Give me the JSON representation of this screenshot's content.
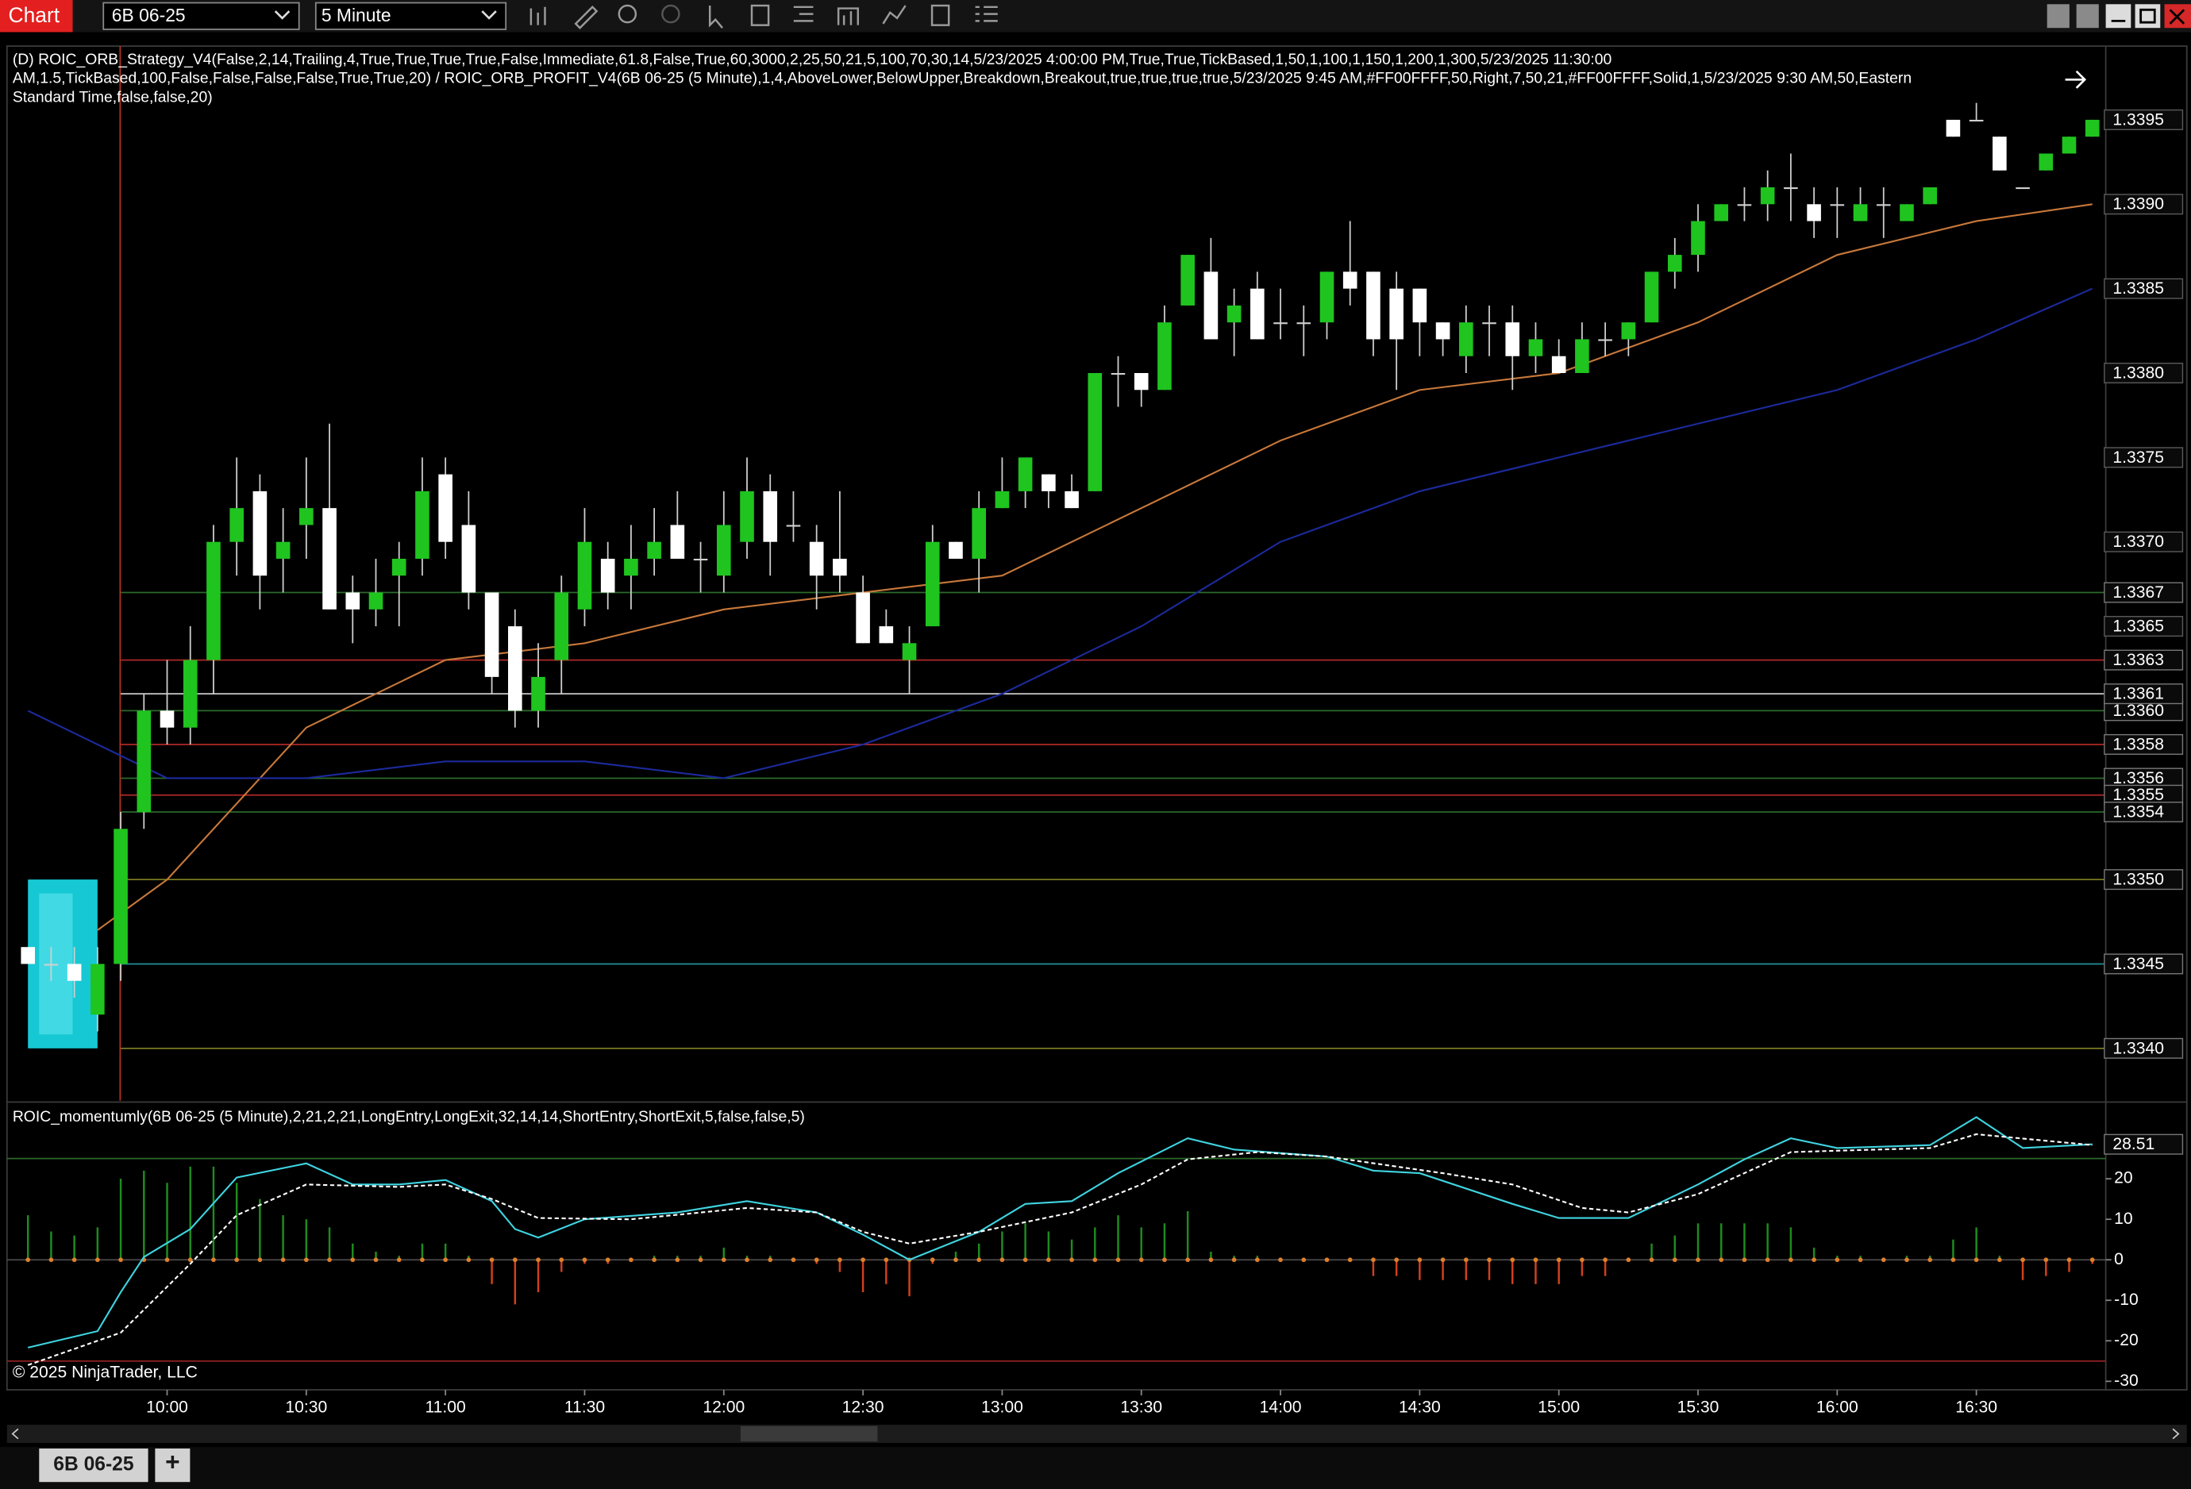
{
  "toolbar": {
    "tab": "Chart",
    "instrument": "6B 06-25",
    "interval": "5 Minute"
  },
  "chart_data": [
    {
      "type": "candlestick",
      "legend_lines": [
        "(D) ROIC_ORB_Strategy_V4(False,2,14,Trailing,4,True,True,True,True,False,Immediate,61.8,False,True,60,3000,2,25,50,21,5,100,70,30,14,5/23/2025 4:00:00 PM,True,True,TickBased,1,50,1,100,1,150,1,200,1,300,5/23/2025 11:30:00",
        "AM,1.5,TickBased,100,False,False,False,False,True,True,20) / ROIC_ORB_PROFIT_V4(6B 06-25 (5 Minute),1,4,AboveLower,BelowUpper,Breakdown,Breakout,true,true,true,true,5/23/2025 9:45 AM,#FF00FFFF,50,Right,7,50,21,#FF00FFFF,Solid,1,5/23/2025 9:30 AM,50,Eastern",
        "Standard Time,false,false,20)"
      ],
      "categories": [
        null,
        null,
        null,
        null,
        null,
        null,
        "10:00",
        null,
        null,
        null,
        null,
        null,
        "10:30",
        null,
        null,
        null,
        null,
        null,
        "11:00",
        null,
        null,
        null,
        null,
        null,
        "11:30",
        null,
        null,
        null,
        null,
        null,
        "12:00",
        null,
        null,
        null,
        null,
        null,
        "12:30",
        null,
        null,
        null,
        null,
        null,
        "13:00",
        null,
        null,
        null,
        null,
        null,
        "13:30",
        null,
        null,
        null,
        null,
        null,
        "14:00",
        null,
        null,
        null,
        null,
        null,
        "14:30",
        null,
        null,
        null,
        null,
        null,
        "15:00",
        null,
        null,
        null,
        null,
        null,
        "15:30",
        null,
        null,
        null,
        null,
        null,
        "16:00",
        null,
        null,
        null,
        null,
        null,
        "16:30",
        null,
        null,
        null,
        null,
        null
      ],
      "open": [
        1.3346,
        1.3345,
        1.3345,
        1.3342,
        1.3345,
        1.3354,
        1.336,
        1.3359,
        1.3363,
        1.337,
        1.3373,
        1.3369,
        1.3371,
        1.3372,
        1.3367,
        1.3366,
        1.3368,
        1.3369,
        1.3374,
        1.3371,
        1.3367,
        1.3365,
        1.336,
        1.3363,
        1.3366,
        1.3369,
        1.3368,
        1.3369,
        1.3371,
        1.3369,
        1.3368,
        1.337,
        1.3373,
        1.3371,
        1.337,
        1.3369,
        1.3367,
        1.3365,
        1.3363,
        1.3365,
        1.337,
        1.3369,
        1.3372,
        1.3373,
        1.3374,
        1.3373,
        1.3373,
        1.338,
        1.338,
        1.3379,
        1.3384,
        1.3386,
        1.3383,
        1.3385,
        1.3383,
        1.3383,
        1.3383,
        1.3386,
        1.3386,
        1.3385,
        1.3385,
        1.3383,
        1.3381,
        1.3383,
        1.3383,
        1.3381,
        1.3381,
        1.338,
        1.3382,
        1.3382,
        1.3383,
        1.3386,
        1.3387,
        1.3389,
        1.339,
        1.339,
        1.3391,
        1.339,
        1.339,
        1.3389,
        1.339,
        1.3389,
        1.339,
        1.3395,
        1.3395,
        1.3394,
        1.3391,
        1.3392,
        1.3393,
        1.3394
      ],
      "high": [
        1.3346,
        1.3346,
        1.3346,
        1.3346,
        1.3354,
        1.3361,
        1.3363,
        1.3365,
        1.3371,
        1.3375,
        1.3374,
        1.3372,
        1.3375,
        1.3377,
        1.3368,
        1.3369,
        1.337,
        1.3375,
        1.3375,
        1.3373,
        1.3367,
        1.3366,
        1.3364,
        1.3368,
        1.3372,
        1.337,
        1.3371,
        1.3372,
        1.3373,
        1.337,
        1.3373,
        1.3375,
        1.3374,
        1.3373,
        1.3371,
        1.3373,
        1.3368,
        1.3366,
        1.3365,
        1.3371,
        1.337,
        1.3373,
        1.3375,
        1.3375,
        1.3374,
        1.3374,
        1.338,
        1.3381,
        1.338,
        1.3384,
        1.3387,
        1.3388,
        1.3385,
        1.3386,
        1.3385,
        1.3384,
        1.3386,
        1.3389,
        1.3386,
        1.3386,
        1.3385,
        1.3383,
        1.3384,
        1.3384,
        1.3384,
        1.3383,
        1.3382,
        1.3383,
        1.3383,
        1.3383,
        1.3386,
        1.3388,
        1.339,
        1.339,
        1.3391,
        1.3392,
        1.3393,
        1.3391,
        1.3391,
        1.3391,
        1.3391,
        1.339,
        1.3391,
        1.3395,
        1.3396,
        1.3394,
        1.3391,
        1.3393,
        1.3394,
        1.3395
      ],
      "low": [
        1.3345,
        1.3344,
        1.3343,
        1.3341,
        1.3344,
        1.3353,
        1.3358,
        1.3358,
        1.3361,
        1.3368,
        1.3366,
        1.3367,
        1.3369,
        1.3366,
        1.3364,
        1.3365,
        1.3365,
        1.3368,
        1.3369,
        1.3366,
        1.3361,
        1.3359,
        1.3359,
        1.3361,
        1.3365,
        1.3366,
        1.3366,
        1.3368,
        1.3369,
        1.3367,
        1.3367,
        1.3369,
        1.3368,
        1.337,
        1.3366,
        1.3367,
        1.3364,
        1.3364,
        1.3361,
        1.3365,
        1.3369,
        1.3367,
        1.3372,
        1.3372,
        1.3372,
        1.3372,
        1.3373,
        1.3378,
        1.3378,
        1.3379,
        1.3384,
        1.3382,
        1.3381,
        1.3382,
        1.3382,
        1.3381,
        1.3382,
        1.3384,
        1.3381,
        1.3379,
        1.3381,
        1.3381,
        1.338,
        1.3381,
        1.3379,
        1.338,
        1.338,
        1.338,
        1.3381,
        1.3381,
        1.3383,
        1.3385,
        1.3386,
        1.3389,
        1.3389,
        1.3389,
        1.3389,
        1.3388,
        1.3388,
        1.3389,
        1.3388,
        1.3389,
        1.339,
        1.3394,
        1.3395,
        1.3392,
        1.3391,
        1.3392,
        1.3393,
        1.3394
      ],
      "close": [
        1.3345,
        1.3345,
        1.3344,
        1.3345,
        1.3353,
        1.336,
        1.3359,
        1.3363,
        1.337,
        1.3372,
        1.3368,
        1.337,
        1.3372,
        1.3366,
        1.3366,
        1.3367,
        1.3369,
        1.3373,
        1.337,
        1.3367,
        1.3362,
        1.336,
        1.3362,
        1.3367,
        1.337,
        1.3367,
        1.3369,
        1.337,
        1.3369,
        1.3369,
        1.3371,
        1.3373,
        1.337,
        1.3371,
        1.3368,
        1.3368,
        1.3364,
        1.3364,
        1.3364,
        1.337,
        1.3369,
        1.3372,
        1.3373,
        1.3375,
        1.3373,
        1.3372,
        1.338,
        1.338,
        1.3379,
        1.3383,
        1.3387,
        1.3382,
        1.3384,
        1.3382,
        1.3383,
        1.3383,
        1.3386,
        1.3385,
        1.3382,
        1.3382,
        1.3383,
        1.3382,
        1.3383,
        1.3383,
        1.3381,
        1.3382,
        1.338,
        1.3382,
        1.3382,
        1.3383,
        1.3386,
        1.3387,
        1.3389,
        1.339,
        1.339,
        1.3391,
        1.3391,
        1.3389,
        1.339,
        1.339,
        1.339,
        1.339,
        1.3391,
        1.3394,
        1.3395,
        1.3392,
        1.3391,
        1.3393,
        1.3394,
        1.3395
      ],
      "up_color": "#1fc41f",
      "down_color": "#ffffff",
      "doji_color": "#d0d0d0",
      "ylim": [
        1.33369,
        1.33992
      ],
      "yticks": [
        1.3365,
        {
          "value": 1.337,
          "label": "1.3370"
        },
        1.3375,
        {
          "value": 1.338,
          "label": "1.3380"
        },
        1.3385,
        {
          "value": 1.339,
          "label": "1.3390"
        },
        1.3395
      ],
      "levels": [
        {
          "value": 1.3367,
          "color": "#2c6a2c"
        },
        {
          "value": 1.3363,
          "color": "#b02828"
        },
        {
          "value": 1.336,
          "label": "1.3360",
          "color": "#2c6a2c"
        },
        {
          "value": 1.3361,
          "color": "#c8c8c8"
        },
        {
          "value": 1.3358,
          "color": "#b02828"
        },
        {
          "value": 1.3356,
          "color": "#2c6a2c"
        },
        {
          "value": 1.3355,
          "color": "#b02828"
        },
        {
          "value": 1.3354,
          "color": "#2c6a2c"
        },
        {
          "value": 1.335,
          "label": "1.3350",
          "color": "#7a7a22"
        },
        {
          "value": 1.3345,
          "color": "#1f8f9a"
        },
        {
          "value": 1.334,
          "label": "1.3340",
          "color": "#7a7a22"
        }
      ],
      "orb_box": {
        "high": 1.335,
        "low": 1.334,
        "color": "#16c8d4"
      },
      "series": [
        {
          "color": "#c8783a",
          "x": [
            3,
            6,
            12,
            18,
            24,
            30,
            36,
            42,
            48,
            54,
            60,
            66,
            72,
            78,
            84,
            89
          ],
          "values": [
            1.3347,
            1.335,
            1.3359,
            1.3363,
            1.3364,
            1.3366,
            1.3367,
            1.3368,
            1.3372,
            1.3376,
            1.3379,
            1.338,
            1.3383,
            1.3387,
            1.3389,
            1.339
          ]
        },
        {
          "color": "#1c2a9c",
          "x": [
            0,
            6,
            12,
            18,
            24,
            30,
            36,
            42,
            48,
            54,
            60,
            66,
            72,
            78,
            84,
            89
          ],
          "values": [
            1.336,
            1.3356,
            1.3356,
            1.3357,
            1.3357,
            1.3356,
            1.3358,
            1.3361,
            1.3365,
            1.337,
            1.3373,
            1.3375,
            1.3377,
            1.3379,
            1.3382,
            1.3385
          ]
        }
      ]
    },
    {
      "type": "line",
      "title": "ROIC_momentumly(6B 06-25 (5 Minute),2,21,2,21,LongEntry,LongExit,32,14,14,ShortEntry,ShortExit,5,false,false,5)",
      "ylim": [
        -32.1,
        37.9
      ],
      "yticks": [
        20,
        10,
        0,
        -10,
        -20,
        -30
      ],
      "levels": [
        {
          "value": 25,
          "color": "#2c6a2c"
        },
        {
          "value": -25,
          "color": "#8a2020"
        }
      ],
      "histogram": {
        "up_color": "#1e8c1e",
        "down_color": "#d2401e",
        "values": [
          11,
          7,
          6,
          8,
          20,
          22,
          19,
          23,
          23,
          19,
          15,
          11,
          10,
          8,
          4,
          2,
          1,
          4,
          4,
          1,
          -6,
          -11,
          -8,
          -3,
          -1,
          -1,
          -0.5,
          1,
          1,
          1,
          3,
          1,
          1,
          0,
          -1,
          -3,
          -8,
          -6,
          -9,
          -1,
          2,
          4,
          7,
          9,
          7,
          5,
          8,
          11,
          8,
          9,
          12,
          2,
          1,
          1,
          0.5,
          0.5,
          0.5,
          0.5,
          -4,
          -4,
          -5,
          -5,
          -5,
          -5,
          -6,
          -6,
          -6,
          -4,
          -4,
          0,
          4,
          6,
          9,
          9,
          9,
          9,
          8,
          3,
          1,
          1,
          0.5,
          1,
          1,
          5,
          8,
          1,
          -5,
          -4,
          -3,
          -1
        ]
      },
      "series": [
        {
          "color": "#3fd4e0",
          "x": [
            0,
            3,
            4,
            5,
            7,
            9,
            12,
            14,
            16,
            18,
            20,
            21,
            22,
            24,
            28,
            31,
            34,
            36,
            38,
            41,
            43,
            45,
            47,
            50,
            52,
            56,
            58,
            60,
            64,
            66,
            69,
            72,
            74,
            76,
            78,
            82,
            84,
            86,
            89
          ],
          "values": [
            -21.7,
            -17.6,
            -8,
            0.7,
            7.6,
            20.3,
            23.8,
            18.6,
            18.6,
            19.7,
            14.5,
            7.6,
            5.5,
            10,
            11.7,
            14.5,
            11.7,
            6.2,
            0,
            6.9,
            13.8,
            14.5,
            21.4,
            30,
            27.2,
            25.5,
            22,
            21.4,
            13.8,
            10.3,
            10.3,
            18.6,
            24.8,
            30,
            27.6,
            28.3,
            35.2,
            27.6,
            28.51
          ]
        },
        {
          "color": "#ffffff",
          "dashed": true,
          "x": [
            0,
            4,
            7,
            9,
            12,
            16,
            18,
            20,
            22,
            26,
            31,
            34,
            36,
            38,
            41,
            45,
            48,
            50,
            53,
            56,
            61,
            64,
            67,
            69,
            72,
            76,
            82,
            84,
            89
          ],
          "values": [
            -26,
            -18,
            -1,
            11,
            18.6,
            18,
            18.6,
            15,
            10.3,
            10,
            12.8,
            11.7,
            6.9,
            4,
            6.9,
            11.7,
            18.6,
            24.8,
            26.6,
            25.5,
            21.4,
            18.6,
            12.8,
            11.7,
            16.2,
            26.6,
            27.6,
            31,
            28.3
          ]
        }
      ]
    }
  ],
  "footer": {
    "copyright": "© 2025 NinjaTrader, LLC",
    "tab": "6B 06-25",
    "add_tab": "+"
  }
}
